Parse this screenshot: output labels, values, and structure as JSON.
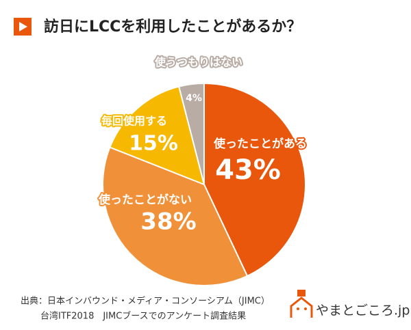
{
  "chart_data": {
    "type": "pie",
    "title": "訪日にLCCを利用したことがあるか？",
    "categories": [
      "使ったことがある",
      "使ったことがない",
      "毎回使用する",
      "使うつもりはない"
    ],
    "values": [
      43,
      38,
      15,
      4
    ],
    "value_labels": [
      "43%",
      "38%",
      "15%",
      "4%"
    ],
    "colors": [
      "#e8570c",
      "#f0913a",
      "#f6b800",
      "#b9aca5"
    ]
  },
  "source": [
    "出典：日本インバウンド・メディア・コンソーシアム（JIMC）",
    "台湾ITF2018　JIMCブースでのアンケート調査結果"
  ],
  "logo": "やまとごころ.jp"
}
